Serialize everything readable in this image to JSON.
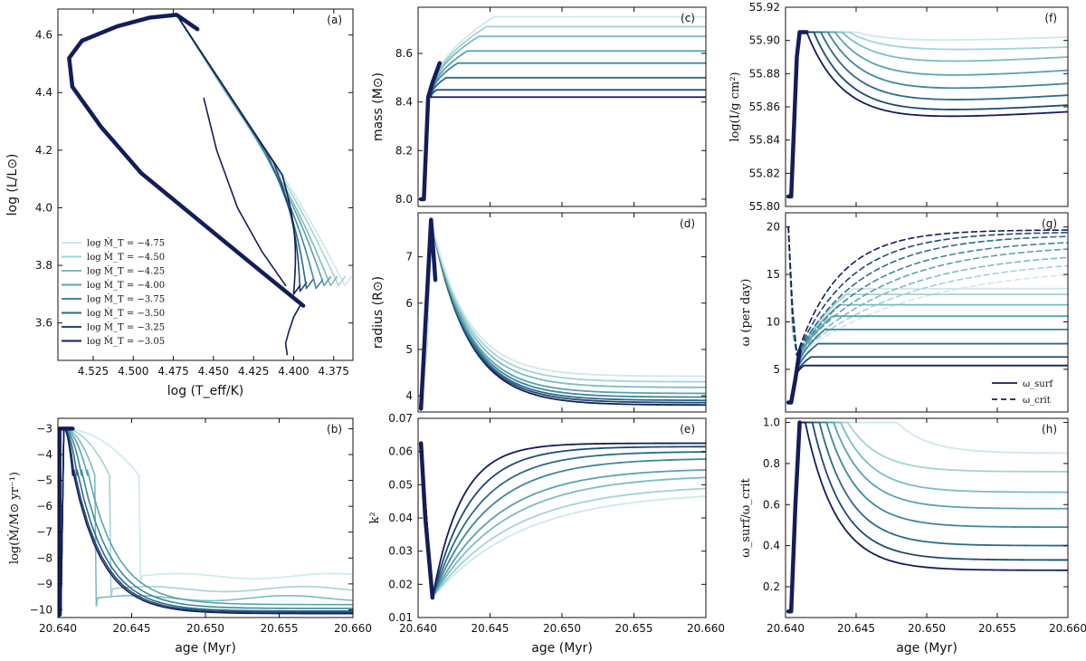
{
  "figure": {
    "colors": [
      "#cfe8e8",
      "#a5d2d3",
      "#7dbcc0",
      "#5aa3ae",
      "#3f879c",
      "#2d6a88",
      "#1f4a73",
      "#141d5a"
    ],
    "series_labels": [
      "log Ṁ_T = −4.75",
      "log Ṁ_T = −4.50",
      "log Ṁ_T = −4.25",
      "log Ṁ_T = −4.00",
      "log Ṁ_T = −3.75",
      "log Ṁ_T = −3.50",
      "log Ṁ_T = −3.25",
      "log Ṁ_T = −3.05"
    ]
  },
  "chart_data": [
    {
      "id": "a",
      "tag": "(a)",
      "type": "line",
      "xlabel": "log (T_eff/K)",
      "ylabel": "log (L/L⊙)",
      "xlim": [
        4.547,
        4.363
      ],
      "ylim": [
        3.47,
        4.69
      ],
      "xticks": [
        4.525,
        4.5,
        4.475,
        4.45,
        4.425,
        4.4,
        4.375
      ],
      "xticklabels": [
        "4.525",
        "4.500",
        "4.475",
        "4.450",
        "4.425",
        "4.400",
        "4.375"
      ],
      "yticks": [
        3.6,
        3.8,
        4.0,
        4.2,
        4.4,
        4.6
      ],
      "yticklabels": [
        "3.6",
        "3.8",
        "4.0",
        "4.2",
        "4.4",
        "4.6"
      ],
      "legend": {
        "position": "lower-left",
        "entries": [
          "log Ṁ_T = −4.75",
          "log Ṁ_T = −4.50",
          "log Ṁ_T = −4.25",
          "log Ṁ_T = −4.00",
          "log Ṁ_T = −3.75",
          "log Ṁ_T = −3.50",
          "log Ṁ_T = −3.25",
          "log Ṁ_T = −3.05"
        ]
      },
      "shared_track": {
        "x": [
          4.394,
          4.425,
          4.46,
          4.495,
          4.52,
          4.538,
          4.54,
          4.532,
          4.51,
          4.49,
          4.473,
          4.46
        ],
        "y": [
          3.66,
          3.8,
          3.96,
          4.12,
          4.28,
          4.42,
          4.52,
          4.58,
          4.63,
          4.66,
          4.67,
          4.62
        ]
      },
      "hook": {
        "x": [
          4.396,
          4.4,
          4.403,
          4.405,
          4.404
        ],
        "y": [
          3.66,
          3.62,
          3.57,
          3.53,
          3.49
        ]
      },
      "series_end_points": {
        "x": [
          4.368,
          4.372,
          4.377,
          4.381,
          4.386,
          4.392,
          4.396,
          4.4
        ],
        "y": [
          3.73,
          3.73,
          3.73,
          3.73,
          3.72,
          3.72,
          3.71,
          3.7
        ]
      }
    },
    {
      "id": "b",
      "tag": "(b)",
      "type": "line",
      "xlabel": "age (Myr)",
      "ylabel": "log(Ṁ/M⊙ yr⁻¹)",
      "xlim": [
        20.64,
        20.66
      ],
      "ylim": [
        -10.3,
        -2.6
      ],
      "xticks": [
        20.64,
        20.645,
        20.65,
        20.655,
        20.66
      ],
      "xticklabels": [
        "20.640",
        "20.645",
        "20.650",
        "20.655",
        "20.660"
      ],
      "yticks": [
        -10,
        -9,
        -8,
        -7,
        -6,
        -5,
        -4,
        -3
      ],
      "yticklabels": [
        "−10",
        "−9",
        "−8",
        "−7",
        "−6",
        "−5",
        "−4",
        "−3"
      ],
      "onset_age": 20.6404,
      "peak_value": -3.0,
      "drop_age": [
        20.6455,
        20.6435,
        20.6425,
        20.642,
        20.6416,
        20.6413,
        20.6411,
        20.641
      ],
      "final_value": [
        -8.7,
        -9.2,
        -9.55,
        -9.8,
        -9.95,
        -10.05,
        -10.1,
        -10.15
      ]
    },
    {
      "id": "c",
      "tag": "(c)",
      "type": "line",
      "xlabel": "",
      "ylabel": "mass (M⊙)",
      "xlim": [
        20.64,
        20.66
      ],
      "ylim": [
        7.97,
        8.79
      ],
      "xticks": [
        20.64,
        20.645,
        20.65,
        20.655,
        20.66
      ],
      "yticks": [
        8.0,
        8.2,
        8.4,
        8.6
      ],
      "yticklabels": [
        "8.0",
        "8.2",
        "8.4",
        "8.6"
      ],
      "initial_value": 8.0,
      "final_value": [
        8.75,
        8.71,
        8.67,
        8.61,
        8.56,
        8.5,
        8.45,
        8.42
      ]
    },
    {
      "id": "d",
      "tag": "(d)",
      "type": "line",
      "xlabel": "",
      "ylabel": "radius (R⊙)",
      "xlim": [
        20.64,
        20.66
      ],
      "ylim": [
        3.65,
        7.95
      ],
      "xticks": [
        20.64,
        20.645,
        20.65,
        20.655,
        20.66
      ],
      "yticks": [
        4,
        5,
        6,
        7
      ],
      "yticklabels": [
        "4",
        "5",
        "6",
        "7"
      ],
      "peak_value": 7.8,
      "final_value": [
        4.42,
        4.3,
        4.18,
        4.05,
        3.97,
        3.9,
        3.85,
        3.8
      ]
    },
    {
      "id": "e",
      "tag": "(e)",
      "type": "line",
      "xlabel": "age (Myr)",
      "ylabel": "k²",
      "xlim": [
        20.64,
        20.66
      ],
      "ylim": [
        0.01,
        0.07
      ],
      "xticks": [
        20.64,
        20.645,
        20.65,
        20.655,
        20.66
      ],
      "xticklabels": [
        "20.640",
        "20.645",
        "20.650",
        "20.655",
        "20.660"
      ],
      "yticks": [
        0.01,
        0.02,
        0.03,
        0.04,
        0.05,
        0.06,
        0.07
      ],
      "yticklabels": [
        "0.01",
        "0.02",
        "0.03",
        "0.04",
        "0.05",
        "0.06",
        "0.07"
      ],
      "initial_value": 0.0625,
      "min_value": 0.016,
      "final_value": [
        0.048,
        0.05,
        0.053,
        0.055,
        0.058,
        0.06,
        0.0615,
        0.0625
      ]
    },
    {
      "id": "f",
      "tag": "(f)",
      "type": "line",
      "xlabel": "",
      "ylabel": "log(I/g cm²)",
      "xlim": [
        20.64,
        20.66
      ],
      "ylim": [
        55.8,
        55.92
      ],
      "xticks": [
        20.64,
        20.645,
        20.65,
        20.655,
        20.66
      ],
      "yticks": [
        55.8,
        55.82,
        55.84,
        55.86,
        55.88,
        55.9,
        55.92
      ],
      "yticklabels": [
        "55.80",
        "55.82",
        "55.84",
        "55.86",
        "55.88",
        "55.90",
        "55.92"
      ],
      "initial_value": 55.806,
      "peak_value": 55.905,
      "min_value": [
        55.899,
        55.893,
        55.885,
        55.876,
        55.868,
        55.861,
        55.855,
        55.851
      ],
      "final_value": [
        55.902,
        55.896,
        55.89,
        55.882,
        55.874,
        55.867,
        55.861,
        55.857
      ]
    },
    {
      "id": "g",
      "tag": "(g)",
      "type": "line",
      "xlabel": "",
      "ylabel": "ω (per day)",
      "xlim": [
        20.64,
        20.66
      ],
      "ylim": [
        0.5,
        21.5
      ],
      "xticks": [
        20.64,
        20.645,
        20.65,
        20.655,
        20.66
      ],
      "yticks": [
        5,
        10,
        15,
        20
      ],
      "yticklabels": [
        "5",
        "10",
        "15",
        "20"
      ],
      "legend": {
        "position": "lower-right",
        "entries": [
          "ω_surf",
          "ω_crit"
        ]
      },
      "surf_final": [
        13.5,
        12.9,
        11.8,
        10.6,
        9.2,
        7.7,
        6.3,
        5.4
      ],
      "crit_final": [
        16.0,
        16.8,
        17.5,
        18.2,
        18.7,
        19.2,
        19.5,
        19.7
      ],
      "crit_initial": 20.0
    },
    {
      "id": "h",
      "tag": "(h)",
      "type": "line",
      "xlabel": "age (Myr)",
      "ylabel": "ω_surf/ω_crit",
      "xlim": [
        20.64,
        20.66
      ],
      "ylim": [
        0.05,
        1.02
      ],
      "xticks": [
        20.64,
        20.645,
        20.65,
        20.655,
        20.66
      ],
      "xticklabels": [
        "20.640",
        "20.645",
        "20.650",
        "20.655",
        "20.660"
      ],
      "yticks": [
        0.2,
        0.4,
        0.6,
        0.8,
        1.0
      ],
      "yticklabels": [
        "0.2",
        "0.4",
        "0.6",
        "0.8",
        "1.0"
      ],
      "initial_value": 0.08,
      "final_value": [
        0.85,
        0.76,
        0.66,
        0.58,
        0.49,
        0.4,
        0.33,
        0.28
      ]
    }
  ]
}
